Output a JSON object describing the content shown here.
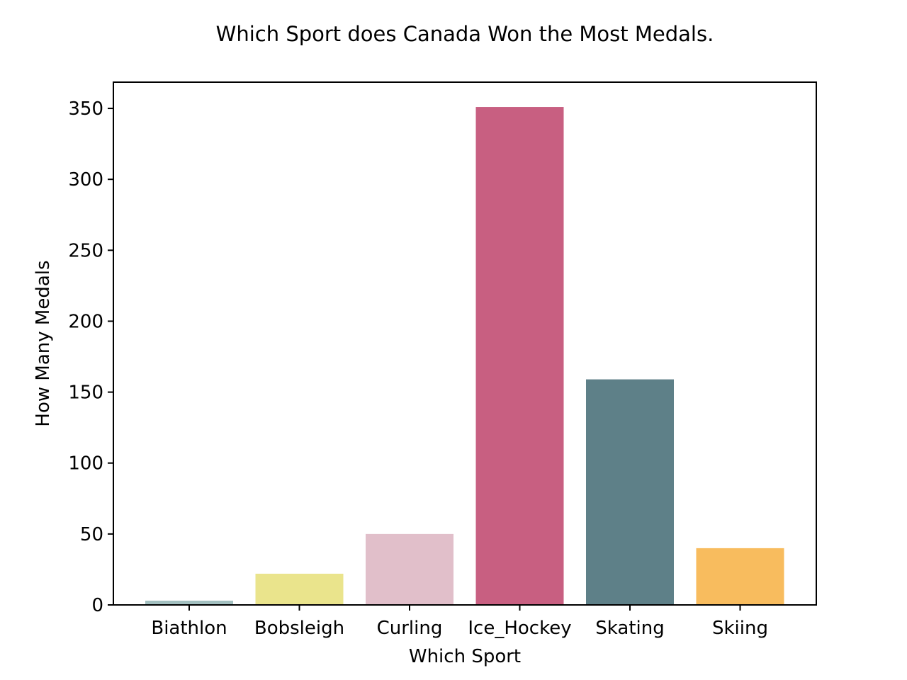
{
  "chart_data": {
    "type": "bar",
    "title": "Which Sport does Canada Won the Most Medals.",
    "xlabel": "Which Sport",
    "ylabel": "How Many Medals",
    "categories": [
      "Biathlon",
      "Bobsleigh",
      "Curling",
      "Ice_Hockey",
      "Skating",
      "Skiing"
    ],
    "values": [
      3,
      22,
      50,
      351,
      159,
      40
    ],
    "colors": [
      "#a3c0c0",
      "#eae48c",
      "#e1bfca",
      "#c85f81",
      "#5e8088",
      "#f8bc5e"
    ],
    "yticks": [
      0,
      50,
      100,
      150,
      200,
      250,
      300,
      350
    ],
    "ylim": [
      0,
      368.5
    ],
    "grid": false,
    "legend": false
  }
}
